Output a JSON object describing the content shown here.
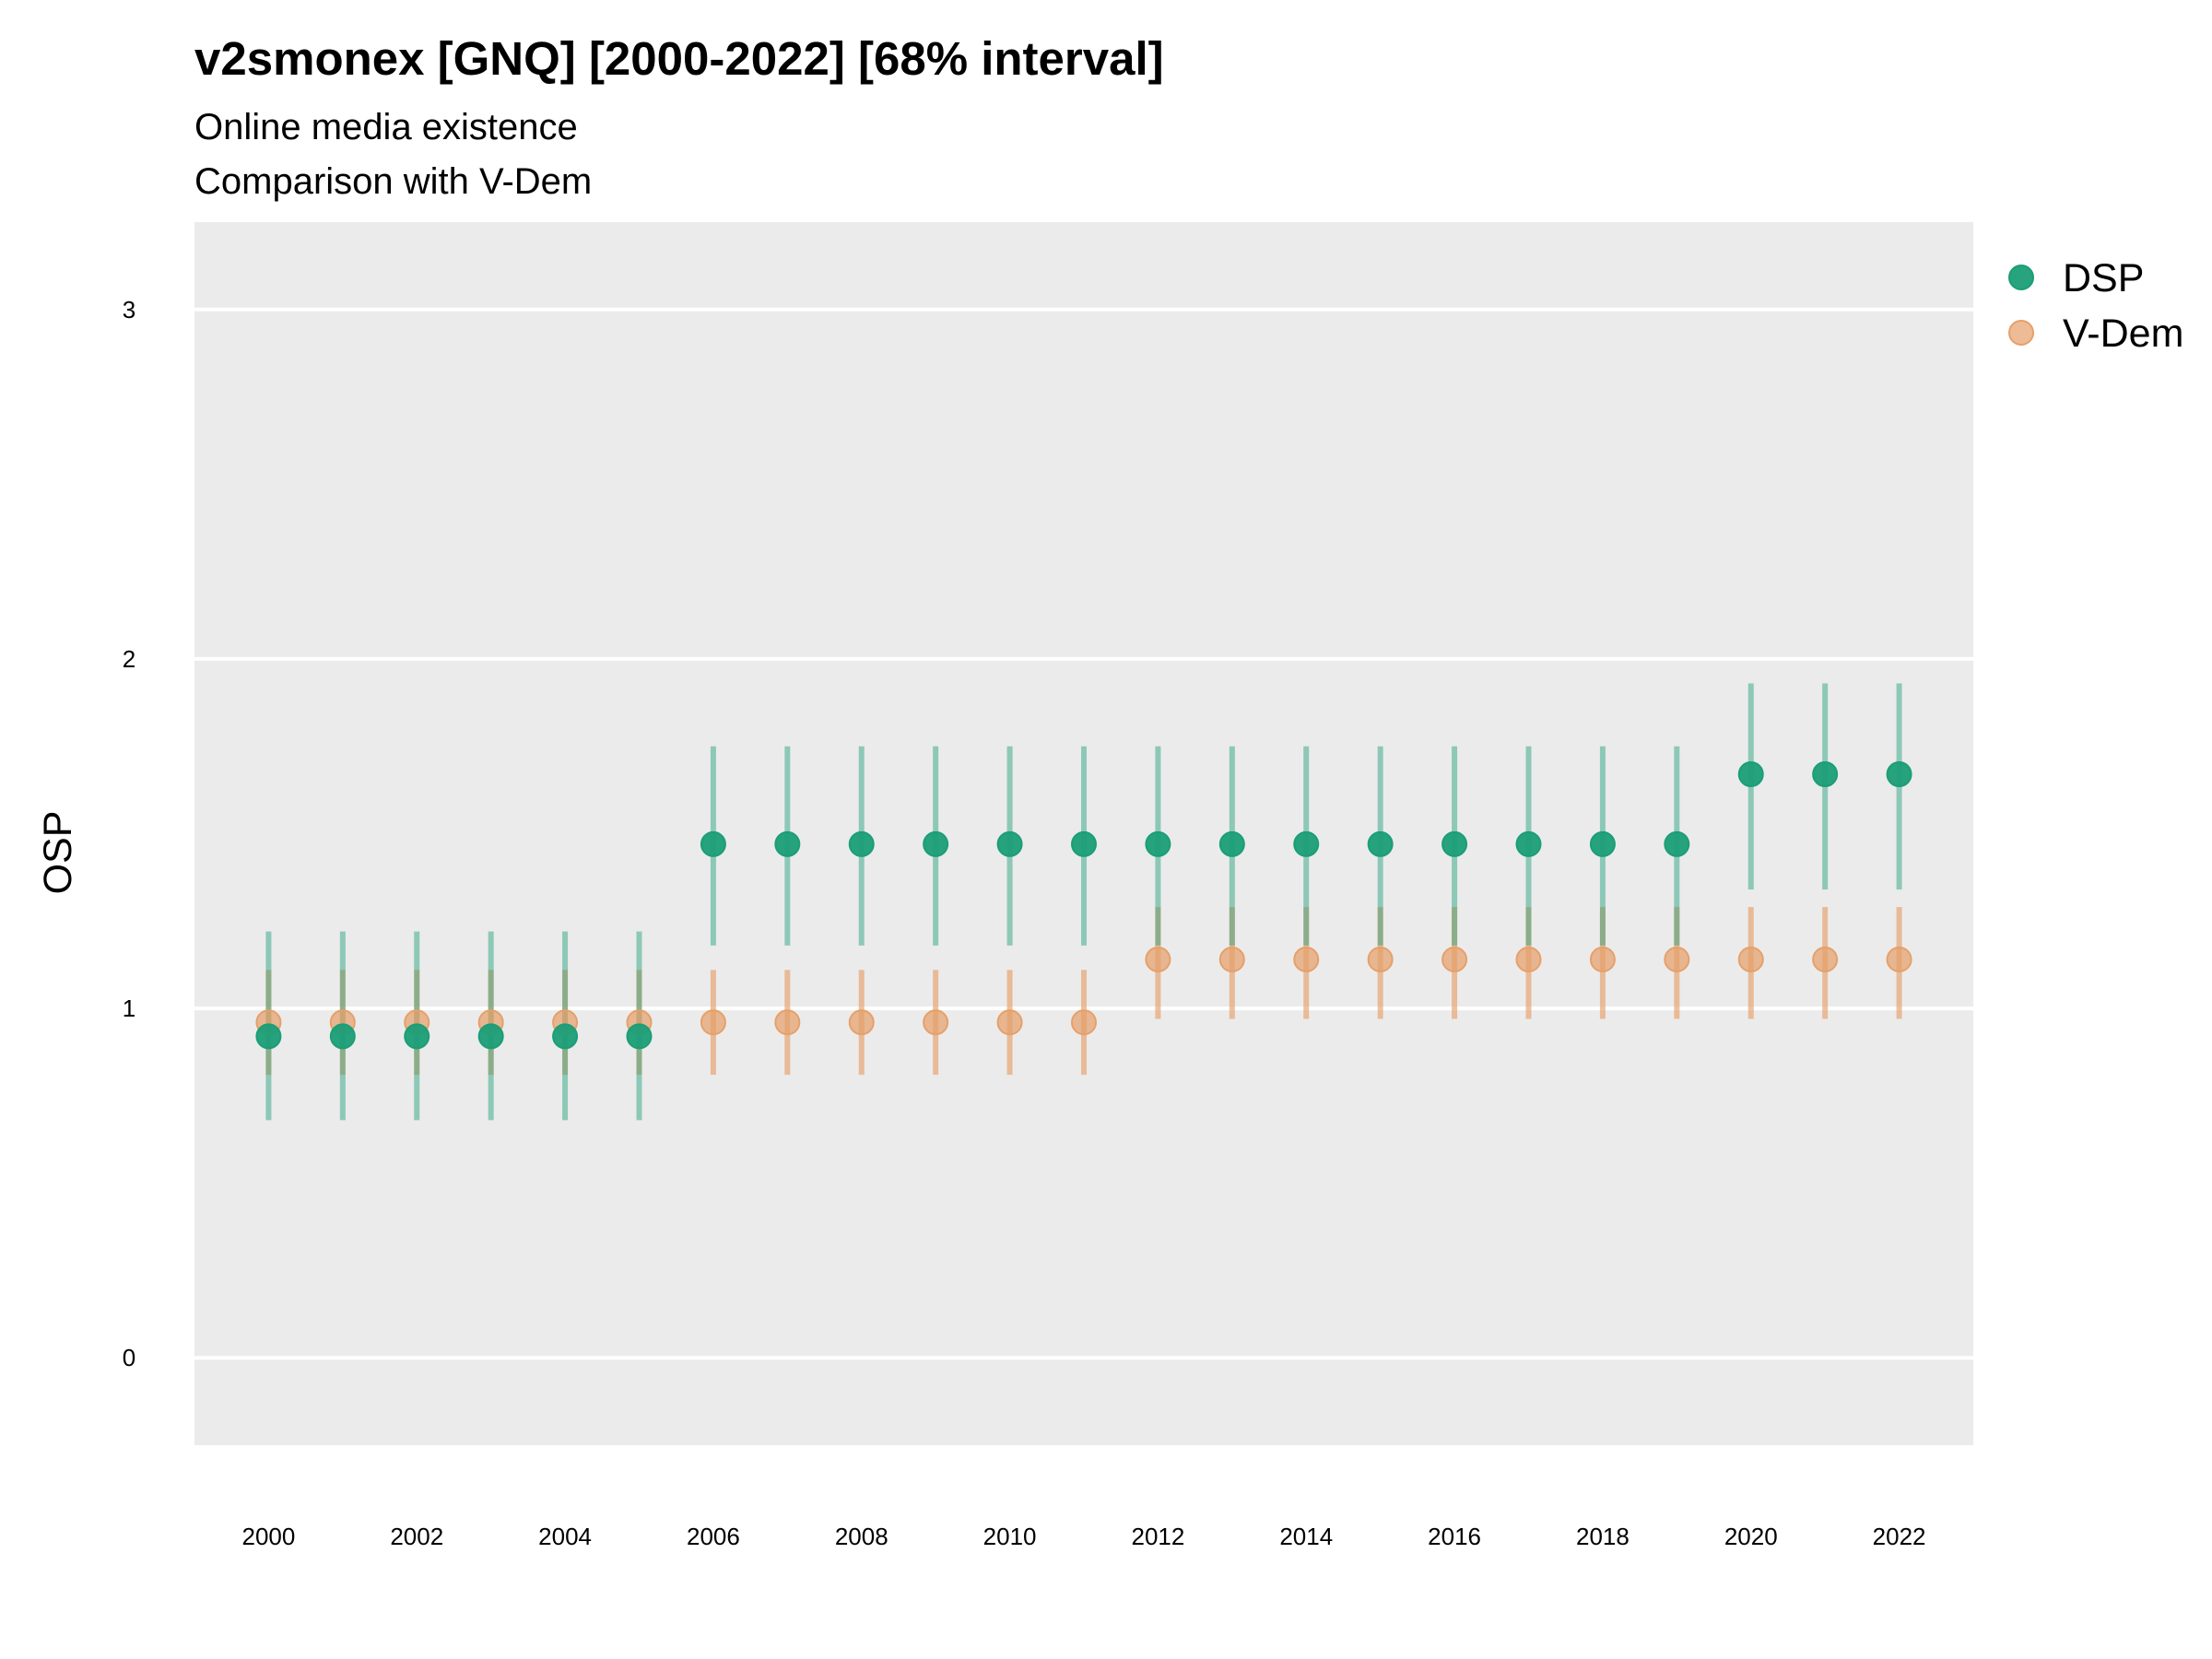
{
  "chart_data": {
    "type": "scatter",
    "title": "v2smonex [GNQ] [2000-2022] [68% interval]",
    "subtitle": [
      "Online media existence",
      "Comparison with V-Dem"
    ],
    "xlabel": "",
    "ylabel": "OSP",
    "ylim": [
      -0.25,
      3.25
    ],
    "xlim": [
      1999,
      2023
    ],
    "yticks": [
      0,
      1,
      2,
      3
    ],
    "xticks": [
      2000,
      2002,
      2004,
      2006,
      2008,
      2010,
      2012,
      2014,
      2016,
      2018,
      2020,
      2022
    ],
    "grid": true,
    "legend_position": "top-right",
    "x": [
      2000,
      2001,
      2002,
      2003,
      2004,
      2005,
      2006,
      2007,
      2008,
      2009,
      2010,
      2011,
      2012,
      2013,
      2014,
      2015,
      2016,
      2017,
      2018,
      2019,
      2020,
      2021,
      2022
    ],
    "series": [
      {
        "name": "DSP",
        "color": "#1b9e77",
        "values": [
          0.92,
          0.92,
          0.92,
          0.92,
          0.92,
          0.92,
          1.47,
          1.47,
          1.47,
          1.47,
          1.47,
          1.47,
          1.47,
          1.47,
          1.47,
          1.47,
          1.47,
          1.47,
          1.47,
          1.47,
          1.67,
          1.67,
          1.67
        ],
        "lower": [
          0.68,
          0.68,
          0.68,
          0.68,
          0.68,
          0.68,
          1.18,
          1.18,
          1.18,
          1.18,
          1.18,
          1.18,
          1.18,
          1.18,
          1.18,
          1.18,
          1.18,
          1.18,
          1.18,
          1.18,
          1.34,
          1.34,
          1.34
        ],
        "upper": [
          1.22,
          1.22,
          1.22,
          1.22,
          1.22,
          1.22,
          1.75,
          1.75,
          1.75,
          1.75,
          1.75,
          1.75,
          1.75,
          1.75,
          1.75,
          1.75,
          1.75,
          1.75,
          1.75,
          1.75,
          1.93,
          1.93,
          1.93
        ]
      },
      {
        "name": "V-Dem",
        "color": "#e6a06a",
        "values": [
          0.96,
          0.96,
          0.96,
          0.96,
          0.96,
          0.96,
          0.96,
          0.96,
          0.96,
          0.96,
          0.96,
          0.96,
          1.14,
          1.14,
          1.14,
          1.14,
          1.14,
          1.14,
          1.14,
          1.14,
          1.14,
          1.14,
          1.14
        ],
        "lower": [
          0.81,
          0.81,
          0.81,
          0.81,
          0.81,
          0.81,
          0.81,
          0.81,
          0.81,
          0.81,
          0.81,
          0.81,
          0.97,
          0.97,
          0.97,
          0.97,
          0.97,
          0.97,
          0.97,
          0.97,
          0.97,
          0.97,
          0.97
        ],
        "upper": [
          1.11,
          1.11,
          1.11,
          1.11,
          1.11,
          1.11,
          1.11,
          1.11,
          1.11,
          1.11,
          1.11,
          1.11,
          1.29,
          1.29,
          1.29,
          1.29,
          1.29,
          1.29,
          1.29,
          1.29,
          1.29,
          1.29,
          1.29
        ]
      }
    ]
  }
}
